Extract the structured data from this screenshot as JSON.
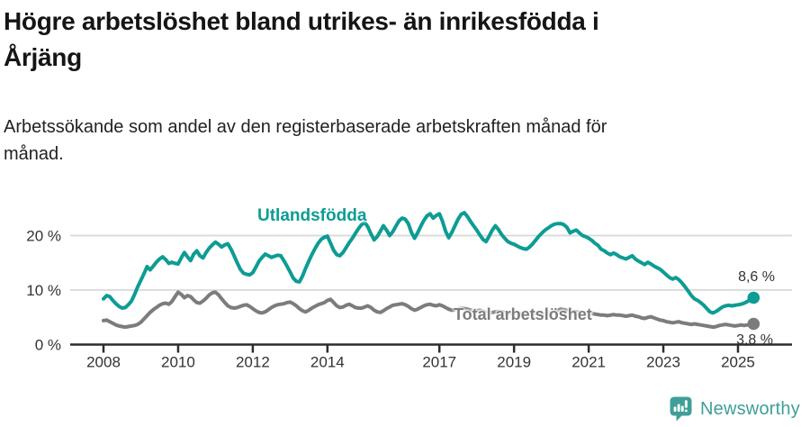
{
  "header": {
    "title": "Högre arbetslöshet bland utrikes- än inrikesfödda i\nÅrjäng",
    "subtitle": "Arbetssökande som andel av den registerbaserade arbetskraften månad för\nmånad."
  },
  "footer": {
    "brand": "Newsworthy"
  },
  "colors": {
    "teal": "#0d9c94",
    "gray": "#7c7c7c",
    "grid": "#d8d8d8",
    "axis": "#2d2d2d",
    "tick_text": "#333333",
    "logo_teal": "#3f9f98"
  },
  "chart_data": {
    "type": "line",
    "title": "Högre arbetslöshet bland utrikes- än inrikesfödda i Årjäng",
    "subtitle": "Arbetssökande som andel av den registerbaserade arbetskraften månad för månad.",
    "x_start": "2008-01",
    "x_end": "2025-06",
    "frequency": "monthly",
    "unit": "%",
    "ylim": [
      0,
      25
    ],
    "grid": "horizontal",
    "yticks": [
      {
        "value": 0,
        "label": "0 %"
      },
      {
        "value": 10,
        "label": "10 %"
      },
      {
        "value": 20,
        "label": "20 %"
      }
    ],
    "xticks": [
      {
        "value": 2008,
        "label": "2008"
      },
      {
        "value": 2010,
        "label": "2010"
      },
      {
        "value": 2012,
        "label": "2012"
      },
      {
        "value": 2014,
        "label": "2014"
      },
      {
        "value": 2017,
        "label": "2017"
      },
      {
        "value": 2019,
        "label": "2019"
      },
      {
        "value": 2021,
        "label": "2021"
      },
      {
        "value": 2023,
        "label": "2023"
      },
      {
        "value": 2025,
        "label": "2025"
      }
    ],
    "series": [
      {
        "name": "Utlandsfödda",
        "color": "#0d9c94",
        "end_label": "8,6 %",
        "end_value": 8.6,
        "values": [
          8.4,
          9.0,
          8.8,
          8.1,
          7.5,
          7.0,
          6.7,
          6.8,
          7.3,
          8.0,
          9.2,
          10.6,
          11.8,
          13.0,
          14.3,
          13.7,
          14.4,
          15.1,
          15.7,
          16.1,
          15.6,
          14.9,
          15.1,
          14.9,
          14.8,
          15.9,
          16.9,
          16.1,
          15.4,
          16.6,
          17.2,
          16.3,
          15.9,
          16.9,
          17.7,
          18.3,
          18.8,
          18.4,
          17.9,
          18.3,
          18.5,
          17.5,
          16.3,
          15.0,
          13.8,
          13.1,
          12.9,
          12.8,
          13.2,
          14.2,
          15.3,
          16.0,
          16.6,
          16.3,
          16.0,
          16.2,
          16.4,
          16.3,
          15.4,
          14.4,
          13.3,
          12.2,
          11.6,
          11.5,
          12.6,
          14.0,
          15.3,
          16.5,
          17.6,
          18.6,
          19.3,
          19.7,
          19.9,
          18.6,
          17.3,
          16.5,
          16.3,
          16.9,
          17.8,
          18.7,
          19.5,
          20.4,
          21.3,
          22.0,
          22.4,
          21.6,
          20.3,
          19.2,
          19.8,
          20.8,
          21.8,
          21.0,
          20.0,
          20.7,
          21.7,
          22.7,
          23.2,
          23.0,
          22.2,
          20.6,
          19.5,
          20.5,
          21.7,
          22.8,
          23.6,
          24.0,
          23.2,
          23.7,
          24.0,
          22.6,
          20.8,
          19.6,
          20.6,
          21.8,
          23.0,
          23.9,
          24.2,
          23.5,
          22.6,
          21.8,
          21.0,
          20.1,
          19.3,
          18.9,
          19.9,
          21.0,
          21.8,
          21.1,
          20.2,
          19.5,
          18.9,
          18.6,
          18.4,
          18.1,
          17.8,
          17.6,
          17.5,
          17.9,
          18.5,
          19.2,
          19.9,
          20.5,
          21.0,
          21.4,
          21.8,
          22.1,
          22.2,
          22.2,
          22.0,
          21.5,
          20.5,
          20.8,
          21.0,
          20.5,
          20.0,
          19.8,
          19.5,
          19.1,
          18.6,
          18.2,
          17.5,
          17.2,
          16.8,
          16.5,
          16.8,
          16.5,
          16.1,
          15.9,
          15.7,
          16.0,
          16.3,
          15.7,
          15.3,
          15.0,
          14.7,
          15.1,
          14.8,
          14.4,
          14.1,
          13.8,
          13.3,
          12.8,
          12.3,
          12.0,
          12.3,
          11.9,
          11.3,
          10.6,
          9.8,
          9.0,
          8.4,
          8.1,
          7.7,
          7.2,
          6.6,
          6.0,
          5.8,
          6.1,
          6.5,
          6.9,
          7.1,
          7.2,
          7.1,
          7.2,
          7.3,
          7.4,
          7.6,
          7.9,
          8.2,
          8.6
        ]
      },
      {
        "name": "Total arbetslöshet",
        "color": "#7c7c7c",
        "end_label": "3,8 %",
        "end_value": 3.8,
        "values": [
          4.4,
          4.5,
          4.2,
          3.9,
          3.6,
          3.4,
          3.3,
          3.2,
          3.3,
          3.4,
          3.5,
          3.7,
          4.1,
          4.7,
          5.3,
          5.9,
          6.4,
          6.8,
          7.2,
          7.5,
          7.6,
          7.4,
          7.9,
          8.8,
          9.6,
          9.2,
          8.6,
          9.0,
          8.8,
          8.2,
          7.7,
          7.6,
          8.0,
          8.5,
          9.1,
          9.5,
          9.6,
          9.1,
          8.4,
          7.7,
          7.1,
          6.8,
          6.7,
          6.8,
          7.0,
          7.2,
          7.3,
          7.0,
          6.6,
          6.2,
          5.9,
          5.8,
          6.0,
          6.4,
          6.8,
          7.1,
          7.3,
          7.4,
          7.5,
          7.7,
          7.8,
          7.5,
          7.1,
          6.6,
          6.2,
          6.0,
          6.3,
          6.7,
          7.0,
          7.3,
          7.5,
          7.7,
          8.1,
          8.3,
          7.7,
          7.1,
          6.8,
          6.9,
          7.2,
          7.4,
          7.1,
          6.8,
          6.7,
          6.7,
          6.9,
          7.1,
          6.8,
          6.3,
          6.0,
          5.9,
          6.2,
          6.6,
          6.9,
          7.2,
          7.3,
          7.4,
          7.5,
          7.3,
          7.0,
          6.6,
          6.3,
          6.5,
          6.8,
          7.1,
          7.3,
          7.4,
          7.2,
          7.1,
          7.3,
          7.1,
          6.8,
          6.5,
          6.3,
          6.4,
          6.6,
          6.7,
          6.6,
          6.5,
          6.3,
          6.2,
          6.2,
          6.3,
          6.1,
          5.9,
          5.8,
          5.9,
          6.0,
          6.1,
          6.0,
          5.9,
          5.8,
          5.7,
          5.8,
          5.8,
          5.7,
          5.5,
          5.4,
          5.5,
          5.7,
          5.8,
          5.7,
          5.6,
          5.6,
          5.7,
          5.9,
          6.1,
          6.3,
          6.5,
          6.4,
          6.3,
          6.2,
          6.1,
          6.0,
          5.9,
          5.8,
          5.8,
          5.8,
          5.7,
          5.6,
          5.5,
          5.4,
          5.4,
          5.3,
          5.4,
          5.5,
          5.4,
          5.4,
          5.3,
          5.2,
          5.3,
          5.4,
          5.2,
          5.1,
          4.9,
          4.8,
          5.0,
          5.1,
          4.9,
          4.7,
          4.5,
          4.4,
          4.2,
          4.1,
          4.0,
          4.1,
          4.2,
          4.0,
          3.9,
          3.8,
          3.7,
          3.8,
          3.7,
          3.6,
          3.5,
          3.4,
          3.3,
          3.2,
          3.3,
          3.5,
          3.6,
          3.7,
          3.6,
          3.5,
          3.4,
          3.5,
          3.6,
          3.5,
          3.6,
          3.7,
          3.8
        ]
      }
    ]
  }
}
